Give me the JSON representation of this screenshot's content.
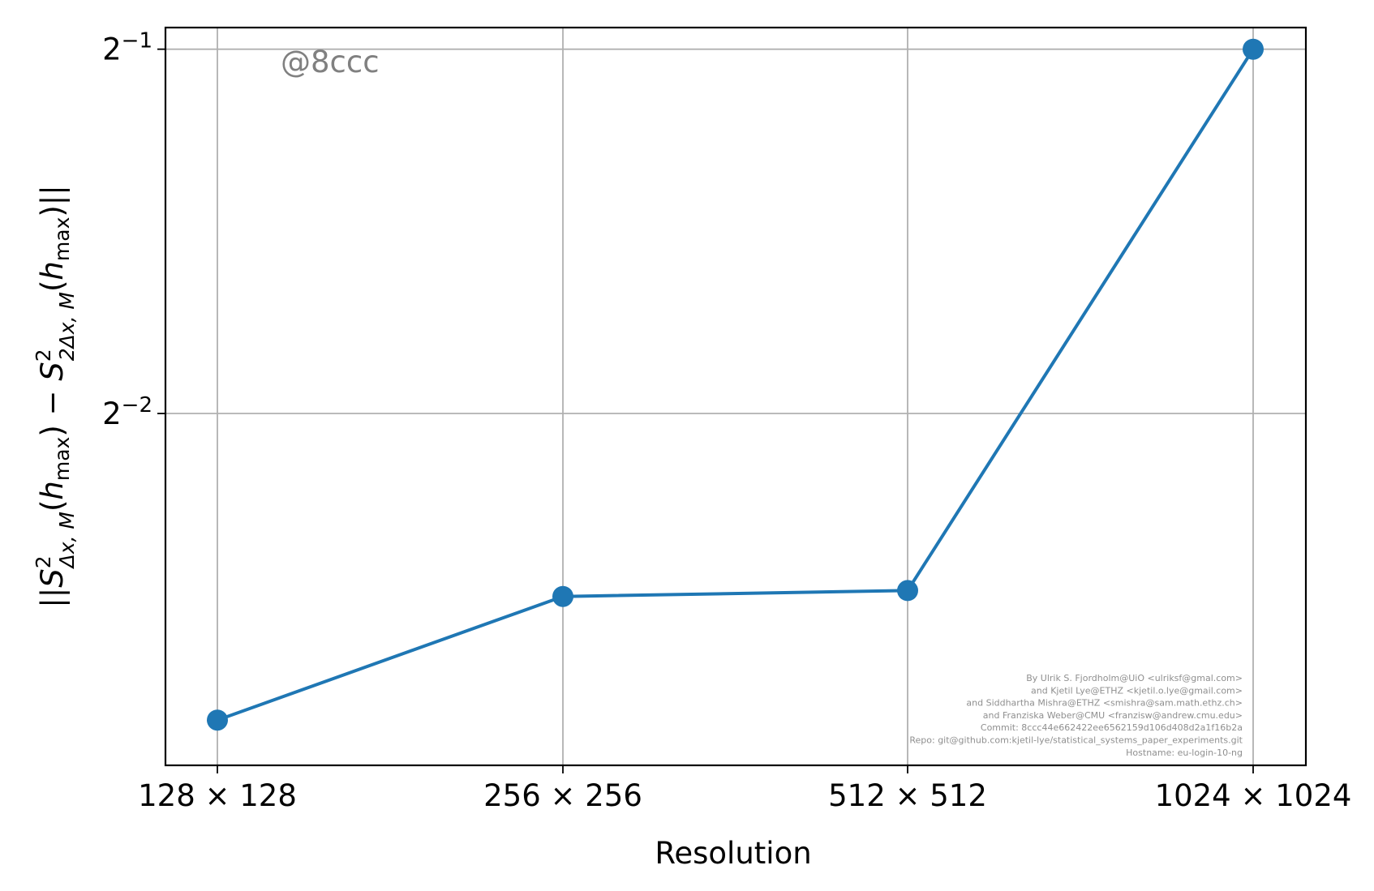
{
  "chart_data": {
    "type": "line",
    "title": "",
    "xlabel": "Resolution",
    "ylabel": "||S²_{Δx,M}(h_max) − S²_{2Δx,M}(h_max)||",
    "ylabel_parts": {
      "open": "||",
      "s1": "S",
      "sup1": "2",
      "sub1": "Δx, M",
      "paren1_open": "(",
      "h1": "h",
      "hsub1": "max",
      "paren1_close": ")",
      "minus": " − ",
      "s2": "S",
      "sup2": "2",
      "sub2": "2Δx, M",
      "paren2_open": "(",
      "h2": "h",
      "hsub2": "max",
      "paren2_close": ")",
      "close": "||"
    },
    "categories": [
      "128 × 128",
      "256 × 256",
      "512 × 512",
      "1024 × 1024"
    ],
    "series": [
      {
        "values": [
          0.1395,
          0.1765,
          0.1785,
          0.5
        ]
      }
    ],
    "yscale": "log2",
    "ylim": [
      0.128,
      0.521
    ],
    "yticks": [
      {
        "value": 0.5,
        "base": "2",
        "exp": "−1"
      },
      {
        "value": 0.25,
        "base": "2",
        "exp": "−2"
      }
    ],
    "grid": true,
    "line_color": "#1f77b4",
    "grid_color": "#b0b0b0"
  },
  "watermark": "@8ccc",
  "credits": [
    "By Ulrik S. Fjordholm@UiO <ulriksf@gmal.com>",
    "and Kjetil Lye@ETHZ <kjetil.o.lye@gmail.com>",
    "and Siddhartha Mishra@ETHZ <smishra@sam.math.ethz.ch>",
    "and Franziska Weber@CMU <franzisw@andrew.cmu.edu>",
    "Commit: 8ccc44e662422ee6562159d106d408d2a1f16b2a",
    "Repo: git@github.com:kjetil-lye/statistical_systems_paper_experiments.git",
    "Hostname: eu-login-10-ng"
  ]
}
